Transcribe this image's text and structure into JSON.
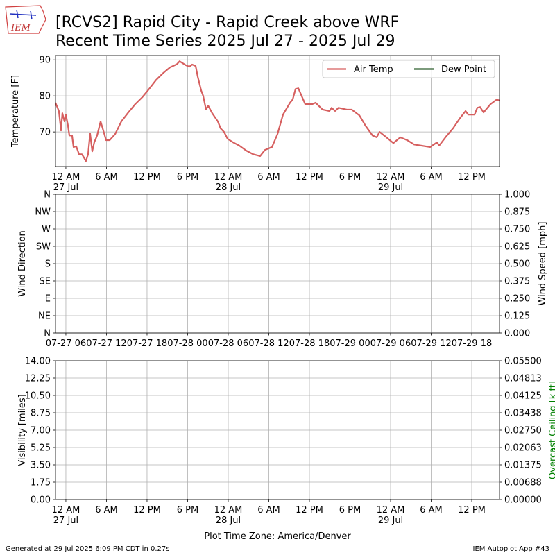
{
  "logo": "IEM",
  "title": [
    "[RCVS2] Rapid City - Rapid Creek above WRF",
    "Recent Time Series 2025 Jul 27 - 2025 Jul 29"
  ],
  "footer_left": "Generated at 29 Jul 2025 6:09 PM CDT in 0.27s",
  "footer_right": "IEM Autoplot App #43",
  "chart_data": [
    {
      "type": "line",
      "ylabel": "Temperature [F]",
      "grid": true,
      "legend": "upper right",
      "xlim": [
        "2025-07-26T22:28",
        "2025-07-29T16:06"
      ],
      "xticks": [
        {
          "value": "2025-07-27T00:00",
          "label": "12 AM\n27 Jul"
        },
        {
          "value": "2025-07-27T06:00",
          "label": "6 AM"
        },
        {
          "value": "2025-07-27T12:00",
          "label": "12 PM"
        },
        {
          "value": "2025-07-27T18:00",
          "label": "6 PM"
        },
        {
          "value": "2025-07-28T00:00",
          "label": "12 AM\n28 Jul"
        },
        {
          "value": "2025-07-28T06:00",
          "label": "6 AM"
        },
        {
          "value": "2025-07-28T12:00",
          "label": "12 PM"
        },
        {
          "value": "2025-07-28T18:00",
          "label": "6 PM"
        },
        {
          "value": "2025-07-29T00:00",
          "label": "12 AM\n29 Jul"
        },
        {
          "value": "2025-07-29T06:00",
          "label": "6 AM"
        },
        {
          "value": "2025-07-29T12:00",
          "label": "12 PM"
        }
      ],
      "ylim": [
        60.4,
        91.2
      ],
      "yticks": [
        70,
        80,
        90
      ],
      "series": [
        {
          "name": "Air Temp",
          "color": "#d65f5f",
          "x": [
            "2025-07-26T22:28",
            "2025-07-26T22:58",
            "2025-07-26T23:17",
            "2025-07-26T23:29",
            "2025-07-26T23:48",
            "2025-07-27T00:00",
            "2025-07-27T00:18",
            "2025-07-27T00:31",
            "2025-07-27T00:55",
            "2025-07-27T01:08",
            "2025-07-27T01:32",
            "2025-07-27T01:57",
            "2025-07-27T02:22",
            "2025-07-27T02:40",
            "2025-07-27T02:58",
            "2025-07-27T03:17",
            "2025-07-27T03:35",
            "2025-07-27T03:54",
            "2025-07-27T04:12",
            "2025-07-27T04:37",
            "2025-07-27T05:08",
            "2025-07-27T05:32",
            "2025-07-27T05:57",
            "2025-07-27T06:28",
            "2025-07-27T07:17",
            "2025-07-27T08:12",
            "2025-07-27T09:14",
            "2025-07-27T10:15",
            "2025-07-27T11:17",
            "2025-07-27T12:18",
            "2025-07-27T13:20",
            "2025-07-27T14:22",
            "2025-07-27T15:23",
            "2025-07-27T16:25",
            "2025-07-27T16:49",
            "2025-07-27T17:45",
            "2025-07-27T18:15",
            "2025-07-27T18:40",
            "2025-07-27T19:11",
            "2025-07-27T19:29",
            "2025-07-27T20:00",
            "2025-07-27T20:18",
            "2025-07-27T20:43",
            "2025-07-27T21:02",
            "2025-07-27T21:38",
            "2025-07-27T22:28",
            "2025-07-27T22:52",
            "2025-07-27T23:23",
            "2025-07-27T23:54",
            "2025-07-28T00:43",
            "2025-07-28T01:38",
            "2025-07-28T02:40",
            "2025-07-28T03:42",
            "2025-07-28T04:43",
            "2025-07-28T05:26",
            "2025-07-28T06:28",
            "2025-07-28T07:17",
            "2025-07-28T08:06",
            "2025-07-28T09:08",
            "2025-07-28T09:32",
            "2025-07-28T09:57",
            "2025-07-28T10:22",
            "2025-07-28T11:23",
            "2025-07-28T12:25",
            "2025-07-28T12:55",
            "2025-07-28T13:57",
            "2025-07-28T14:58",
            "2025-07-28T15:17",
            "2025-07-28T15:48",
            "2025-07-28T16:18",
            "2025-07-28T17:32",
            "2025-07-28T18:15",
            "2025-07-28T19:23",
            "2025-07-28T20:18",
            "2025-07-28T21:20",
            "2025-07-28T21:57",
            "2025-07-28T22:22",
            "2025-07-28T23:23",
            "2025-07-29T00:25",
            "2025-07-29T01:26",
            "2025-07-29T02:28",
            "2025-07-29T03:29",
            "2025-07-29T04:31",
            "2025-07-29T05:51",
            "2025-07-29T06:52",
            "2025-07-29T07:11",
            "2025-07-29T08:12",
            "2025-07-29T09:14",
            "2025-07-29T10:15",
            "2025-07-29T11:05",
            "2025-07-29T11:29",
            "2025-07-29T12:25",
            "2025-07-29T12:49",
            "2025-07-29T13:14",
            "2025-07-29T13:45",
            "2025-07-29T14:46",
            "2025-07-29T15:42",
            "2025-07-29T16:06"
          ],
          "values": [
            78.1,
            75.8,
            70.4,
            75.2,
            72.9,
            74.8,
            71.9,
            69.0,
            69.0,
            65.8,
            66.0,
            63.8,
            63.8,
            62.9,
            61.9,
            63.8,
            69.6,
            64.6,
            67.1,
            69.0,
            72.9,
            70.4,
            67.7,
            67.7,
            69.4,
            72.9,
            75.4,
            77.7,
            79.6,
            81.9,
            84.4,
            86.3,
            87.9,
            88.8,
            89.6,
            88.5,
            88.1,
            88.7,
            88.3,
            85.4,
            81.5,
            80.0,
            76.2,
            77.3,
            75.2,
            72.9,
            71.0,
            70.0,
            68.1,
            67.1,
            66.2,
            64.8,
            63.8,
            63.3,
            65.0,
            65.8,
            69.4,
            74.8,
            78.1,
            79.0,
            81.9,
            82.1,
            77.7,
            77.7,
            78.1,
            76.2,
            75.8,
            76.7,
            75.8,
            76.7,
            76.2,
            76.2,
            74.6,
            71.7,
            69.0,
            68.5,
            70.0,
            68.5,
            66.9,
            68.5,
            67.7,
            66.5,
            66.2,
            65.8,
            67.1,
            66.2,
            68.7,
            71.0,
            73.8,
            75.8,
            74.8,
            74.8,
            76.7,
            76.9,
            75.4,
            77.7,
            79.0,
            78.7
          ]
        },
        {
          "name": "Dew Point",
          "color": "#2f5f2f",
          "x": [],
          "values": []
        }
      ]
    },
    {
      "type": "line",
      "ylabel": "Wind Direction",
      "y2label": "Wind Speed [mph]",
      "grid": true,
      "xtick_side": "below",
      "xlim": [
        "2025-07-27T04:28",
        "2025-07-29T22:06"
      ],
      "xticks": [
        {
          "value": "2025-07-27T06:00",
          "label": "07-27 06"
        },
        {
          "value": "2025-07-27T12:00",
          "label": "07-27 12"
        },
        {
          "value": "2025-07-27T18:00",
          "label": "07-27 18"
        },
        {
          "value": "2025-07-28T00:00",
          "label": "07-28 00"
        },
        {
          "value": "2025-07-28T06:00",
          "label": "07-28 06"
        },
        {
          "value": "2025-07-28T12:00",
          "label": "07-28 12"
        },
        {
          "value": "2025-07-28T18:00",
          "label": "07-28 18"
        },
        {
          "value": "2025-07-29T00:00",
          "label": "07-29 00"
        },
        {
          "value": "2025-07-29T06:00",
          "label": "07-29 06"
        },
        {
          "value": "2025-07-29T12:00",
          "label": "07-29 12"
        },
        {
          "value": "2025-07-29T18:00",
          "label": "07-29 18"
        }
      ],
      "ylim": [
        0,
        360
      ],
      "yticks": [
        {
          "value": 0,
          "label": "N"
        },
        {
          "value": 45,
          "label": "NE"
        },
        {
          "value": 90,
          "label": "E"
        },
        {
          "value": 135,
          "label": "SE"
        },
        {
          "value": 180,
          "label": "S"
        },
        {
          "value": 225,
          "label": "SW"
        },
        {
          "value": 270,
          "label": "W"
        },
        {
          "value": 315,
          "label": "NW"
        },
        {
          "value": 360,
          "label": "N"
        }
      ],
      "y2lim": [
        0,
        1
      ],
      "y2ticks": [
        {
          "value": 0,
          "label": "0.000"
        },
        0.125,
        {
          "value": 0.25,
          "label": "0.250"
        },
        0.375,
        {
          "value": 0.5,
          "label": "0.500"
        },
        0.625,
        {
          "value": 0.75,
          "label": "0.750"
        },
        0.875,
        {
          "value": 1,
          "label": "1.000"
        }
      ],
      "series": []
    },
    {
      "type": "line",
      "ylabel": "Visibility [miles]",
      "y2label": "Overcast Ceiling [k ft]",
      "y2label_color": "#008000",
      "grid": true,
      "xlabel": "Plot Time Zone: America/Denver",
      "xlim": [
        "2025-07-26T22:28",
        "2025-07-29T16:06"
      ],
      "xticks": [
        {
          "value": "2025-07-27T00:00",
          "label": "12 AM\n27 Jul"
        },
        {
          "value": "2025-07-27T06:00",
          "label": "6 AM"
        },
        {
          "value": "2025-07-27T12:00",
          "label": "12 PM"
        },
        {
          "value": "2025-07-27T18:00",
          "label": "6 PM"
        },
        {
          "value": "2025-07-28T00:00",
          "label": "12 AM\n28 Jul"
        },
        {
          "value": "2025-07-28T06:00",
          "label": "6 AM"
        },
        {
          "value": "2025-07-28T12:00",
          "label": "12 PM"
        },
        {
          "value": "2025-07-28T18:00",
          "label": "6 PM"
        },
        {
          "value": "2025-07-29T00:00",
          "label": "12 AM\n29 Jul"
        },
        {
          "value": "2025-07-29T06:00",
          "label": "6 AM"
        },
        {
          "value": "2025-07-29T12:00",
          "label": "12 PM"
        }
      ],
      "ylim": [
        0,
        14
      ],
      "yticks": [
        {
          "value": 0,
          "label": "0.00"
        },
        1.75,
        {
          "value": 3.5,
          "label": "3.50"
        },
        5.25,
        {
          "value": 7,
          "label": "7.00"
        },
        8.75,
        {
          "value": 10.5,
          "label": "10.50"
        },
        12.25,
        {
          "value": 14,
          "label": "14.00"
        }
      ],
      "y2lim": [
        0,
        0.055
      ],
      "y2ticks": [
        {
          "value": 0,
          "label": "0.00000"
        },
        {
          "value": 0.006875,
          "label": "0.00688"
        },
        0.01375,
        {
          "value": 0.020625,
          "label": "0.02063"
        },
        {
          "value": 0.0275,
          "label": "0.02750"
        },
        {
          "value": 0.034375,
          "label": "0.03438"
        },
        0.04125,
        {
          "value": 0.048125,
          "label": "0.04813"
        },
        {
          "value": 0.055,
          "label": "0.05500"
        }
      ],
      "series": []
    }
  ]
}
